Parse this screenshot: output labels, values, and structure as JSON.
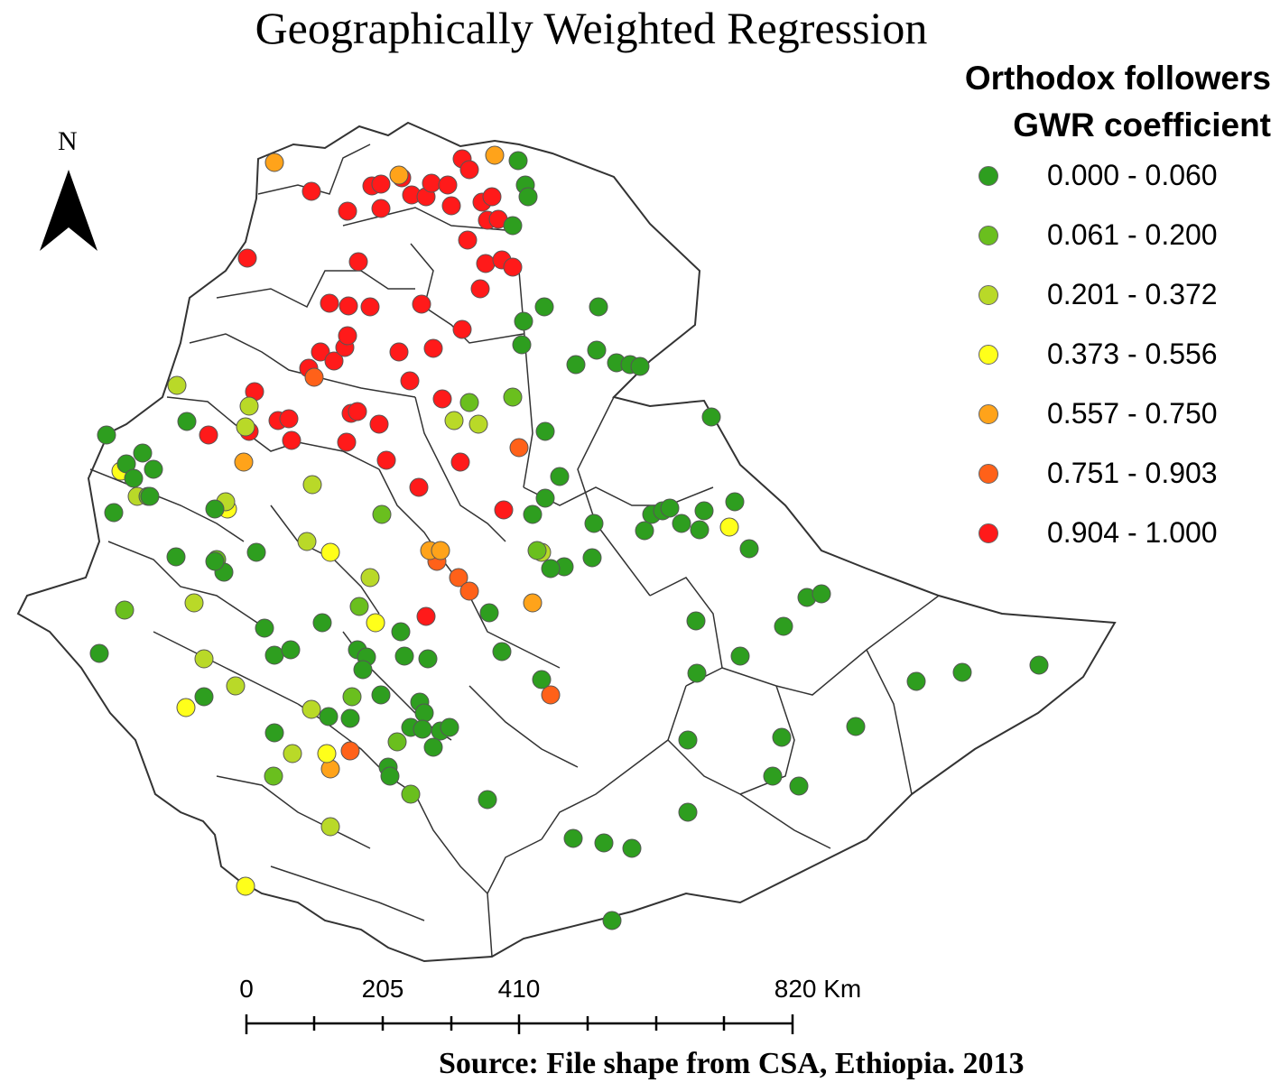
{
  "title": "Geographically Weighted Regression",
  "legend": {
    "title_line1": "Orthodox followers",
    "title_line2": "GWR coefficient",
    "classes": [
      {
        "label": "0.000 - 0.060",
        "color": "#2e9e1f"
      },
      {
        "label": "0.061 - 0.200",
        "color": "#6abf1e"
      },
      {
        "label": "0.201 - 0.372",
        "color": "#b9d928"
      },
      {
        "label": "0.373 - 0.556",
        "color": "#ffff1a"
      },
      {
        "label": "0.557 - 0.750",
        "color": "#ffa31a"
      },
      {
        "label": "0.751 - 0.903",
        "color": "#ff6119"
      },
      {
        "label": "0.904 - 1.000",
        "color": "#ff1a1a"
      }
    ]
  },
  "north_arrow": {
    "label": "N",
    "icon": "north-arrow-icon"
  },
  "scale_bar": {
    "labels": [
      {
        "text": "0",
        "value": 0
      },
      {
        "text": "205",
        "value": 205
      },
      {
        "text": "410",
        "value": 410
      },
      {
        "text": "820 Km",
        "value": 820
      }
    ],
    "max_km": 820
  },
  "source": "Source: File shape from CSA, Ethiopia. 2013"
}
